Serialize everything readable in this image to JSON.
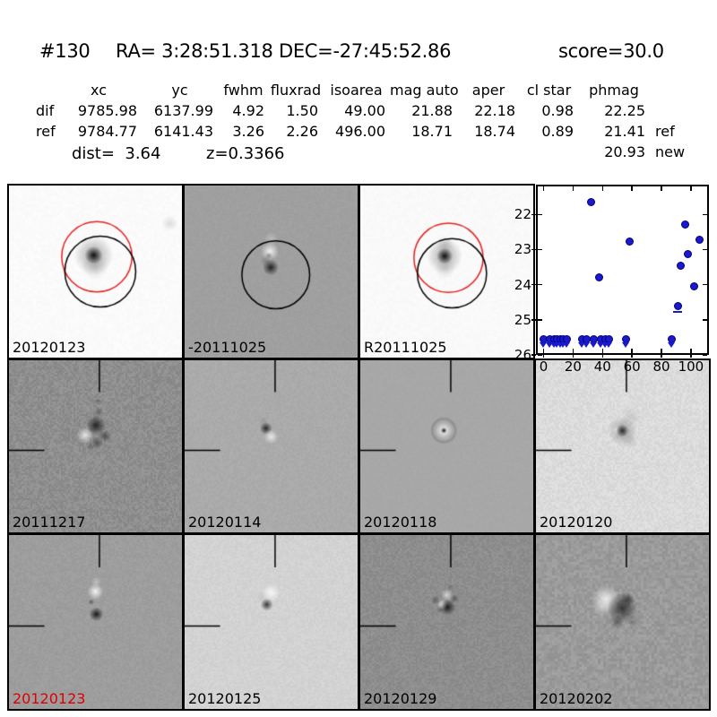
{
  "header": {
    "candidate_id": "#130",
    "coordinates": "RA= 3:28:51.318 DEC=-27:45:52.86",
    "score": "score=30.0"
  },
  "photometry": {
    "columns": [
      "xc",
      "yc",
      "fwhm",
      "fluxrad",
      "isoarea",
      "mag auto",
      "aper",
      "cl star",
      "phmag"
    ],
    "rows": [
      {
        "label": "dif",
        "values": [
          "9785.98",
          "6137.99",
          "4.92",
          "1.50",
          "49.00",
          "21.88",
          "22.18",
          "0.98",
          "22.25"
        ],
        "suffix": ""
      },
      {
        "label": "ref",
        "values": [
          "9784.77",
          "6141.43",
          "3.26",
          "2.26",
          "496.00",
          "18.71",
          "18.74",
          "0.89",
          "21.41"
        ],
        "suffix": "ref"
      },
      {
        "label": "",
        "values": [
          "",
          "",
          "",
          "",
          "",
          "",
          "",
          "",
          "20.93"
        ],
        "suffix": "new"
      }
    ],
    "dist_label": "dist=  3.64",
    "z_label": "z=0.3366"
  },
  "stamps": [
    {
      "label": "20120123",
      "label_color": "#000000",
      "overlays": [
        "red-circle",
        "black-circle"
      ]
    },
    {
      "label": "-20111025",
      "label_color": "#000000",
      "overlays": [
        "black-circle"
      ]
    },
    {
      "label": "R20111025",
      "label_color": "#000000",
      "overlays": [
        "red-circle",
        "black-circle"
      ]
    },
    {
      "label": "20111217",
      "label_color": "#000000",
      "overlays": [
        "crosshair"
      ]
    },
    {
      "label": "20120114",
      "label_color": "#000000",
      "overlays": [
        "crosshair"
      ]
    },
    {
      "label": "20120118",
      "label_color": "#000000",
      "overlays": [
        "crosshair"
      ]
    },
    {
      "label": "20120120",
      "label_color": "#000000",
      "overlays": [
        "crosshair"
      ]
    },
    {
      "label": "20120123",
      "label_color": "#dd0000",
      "overlays": [
        "crosshair"
      ]
    },
    {
      "label": "20120125",
      "label_color": "#000000",
      "overlays": [
        "crosshair"
      ]
    },
    {
      "label": "20120129",
      "label_color": "#000000",
      "overlays": [
        "crosshair"
      ]
    },
    {
      "label": "20120202",
      "label_color": "#000000",
      "overlays": [
        "crosshair"
      ]
    }
  ],
  "chart_data": {
    "type": "scatter",
    "title": "",
    "xlabel": "",
    "ylabel": "",
    "xlim": [
      -4,
      111
    ],
    "ylim": [
      21.2,
      25.95
    ],
    "y_inverted": true,
    "grid": false,
    "x_ticks": [
      0,
      20,
      40,
      60,
      80,
      100
    ],
    "y_ticks": [
      22,
      23,
      24,
      25,
      26
    ],
    "marker_color": "#1a1acc",
    "marker_edge_color": "#000080",
    "series": [
      {
        "name": "detections",
        "marker": "filled-circle",
        "points": [
          [
            32,
            21.64
          ],
          [
            95.8,
            22.29
          ],
          [
            58.6,
            22.76
          ],
          [
            106,
            22.72
          ],
          [
            98,
            23.14
          ],
          [
            93,
            23.46
          ],
          [
            37.5,
            23.78
          ],
          [
            102,
            24.04
          ],
          [
            91,
            24.61
          ]
        ]
      },
      {
        "name": "upper-limits",
        "marker": "circle-with-down-arrow",
        "y": 25.56,
        "x": [
          0,
          4.5,
          7.2,
          9.3,
          11.3,
          13.5,
          16,
          26,
          29.2,
          34,
          38.8,
          41.7,
          44.5,
          55.8,
          87
        ]
      }
    ],
    "error_caps": [
      {
        "x": 91,
        "y": 24.75
      }
    ]
  }
}
